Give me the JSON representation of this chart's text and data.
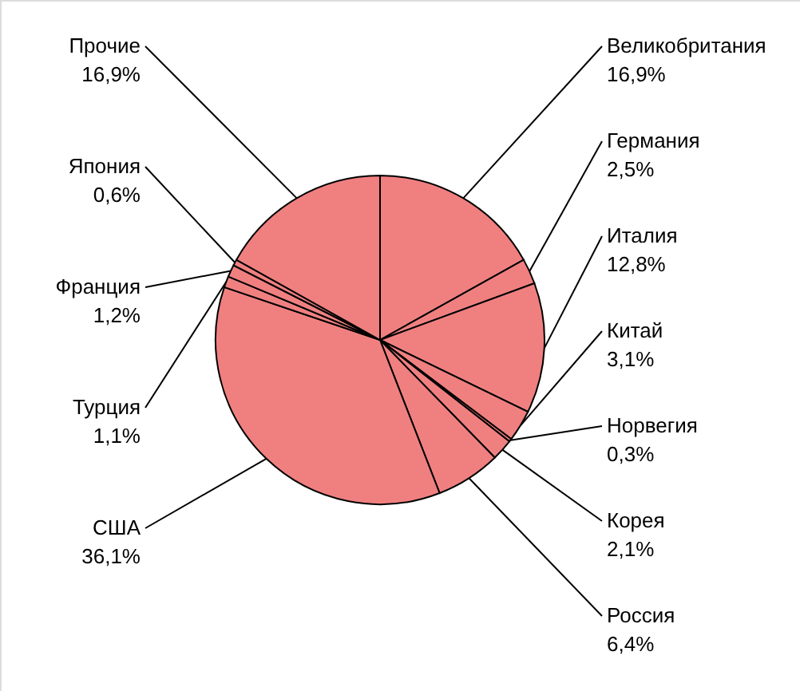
{
  "chart_data": {
    "type": "pie",
    "categories": [
      "Великобритания",
      "Германия",
      "Италия",
      "Китай",
      "Норвегия",
      "Корея",
      "Россия",
      "США",
      "Турция",
      "Франция",
      "Япония",
      "Прочие"
    ],
    "values": [
      16.9,
      2.5,
      12.8,
      3.1,
      0.3,
      2.1,
      6.4,
      36.1,
      1.1,
      1.2,
      0.6,
      16.9
    ],
    "value_labels": [
      "16,9%",
      "2,5%",
      "12,8%",
      "3,1%",
      "0,3%",
      "2,1%",
      "6,4%",
      "36,1%",
      "1,1%",
      "1,2%",
      "0,6%",
      "16,9%"
    ],
    "colors": [
      "#f08080",
      "#f08080",
      "#f08080",
      "#f08080",
      "#f08080",
      "#f08080",
      "#f08080",
      "#f08080",
      "#f08080",
      "#f08080",
      "#f08080",
      "#f08080"
    ]
  }
}
